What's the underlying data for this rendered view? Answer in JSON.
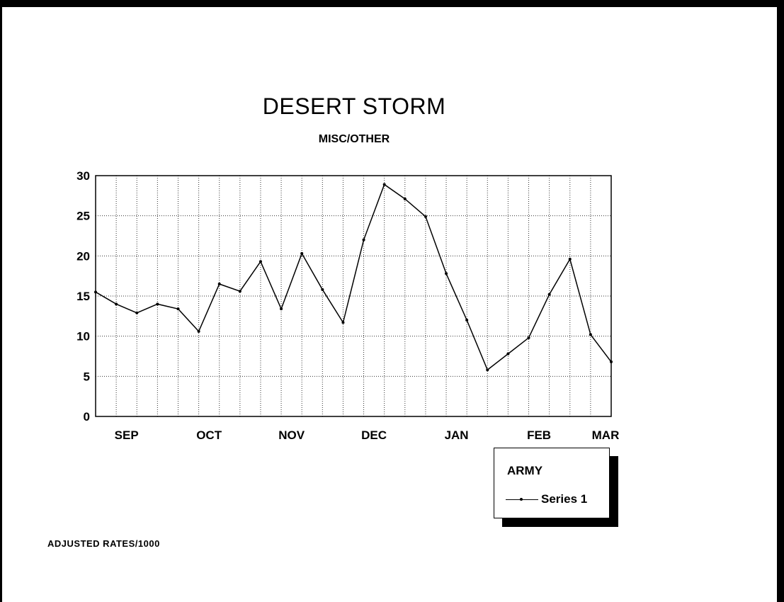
{
  "chart_data": {
    "type": "line",
    "title": "DESERT STORM",
    "subtitle": "MISC/OTHER",
    "footnote": "ADJUSTED RATES/1000",
    "xlabel": "",
    "ylabel": "",
    "ylim": [
      0,
      30
    ],
    "yticks": [
      "0",
      "5",
      "10",
      "15",
      "20",
      "25",
      "30"
    ],
    "xtick_labels": [
      "SEP",
      "OCT",
      "NOV",
      "DEC",
      "JAN",
      "FEB",
      "MAR"
    ],
    "grid": true,
    "legend": {
      "title": "ARMY",
      "placement": "bottom-right"
    },
    "series": [
      {
        "name": "Series 1",
        "color": "#000000",
        "values": [
          15.5,
          14.0,
          12.9,
          14.0,
          13.4,
          10.6,
          16.5,
          15.6,
          19.3,
          13.4,
          20.3,
          15.8,
          11.7,
          22.0,
          28.9,
          27.1,
          24.9,
          17.8,
          12.0,
          5.8,
          7.8,
          9.8,
          15.2,
          19.6,
          10.2,
          6.8
        ]
      }
    ]
  }
}
